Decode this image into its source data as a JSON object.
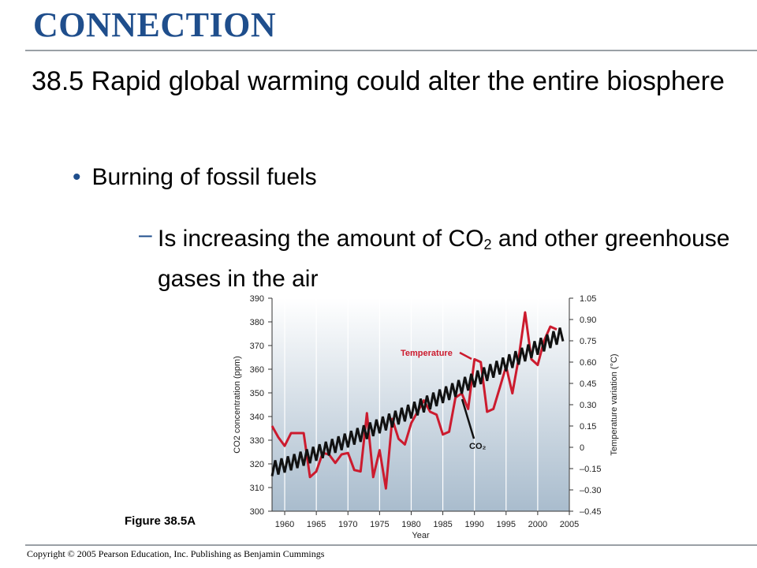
{
  "slide": {
    "header": "CONNECTION",
    "title": "38.5 Rapid global warming could alter the entire biosphere",
    "bullet": "Burning of fossil fuels",
    "dash": "–",
    "sub_pre": "Is increasing the amount of CO",
    "sub_sub": "2",
    "sub_post": " and other greenhouse gases in the air",
    "figure_label": "Figure 38.5A",
    "copyright": "Copyright © 2005 Pearson Education, Inc. Publishing as Benjamin Cummings"
  },
  "chart_data": {
    "type": "line",
    "xlabel": "Year",
    "ylabel_left": "CO2 concentration (ppm)",
    "ylabel_right": "Temperature variation (°C)",
    "xlim": [
      1958,
      2005
    ],
    "ylim_left": [
      300,
      390
    ],
    "ylim_right": [
      -0.45,
      1.05
    ],
    "x_ticks": [
      1960,
      1965,
      1970,
      1975,
      1980,
      1985,
      1990,
      1995,
      2000,
      2005
    ],
    "y_ticks_left": [
      300,
      310,
      320,
      330,
      340,
      350,
      360,
      370,
      380,
      390
    ],
    "y_ticks_right": [
      "1.05",
      "0.90",
      "0.75",
      "0.60",
      "0.45",
      "0.30",
      "0.15",
      "0",
      "–0.15",
      "–0.30",
      "–0.45"
    ],
    "series": [
      {
        "name": "Temperature",
        "axis": "right",
        "color": "#cc1b2e",
        "x": [
          1958,
          1959,
          1960,
          1961,
          1962,
          1963,
          1964,
          1965,
          1966,
          1967,
          1968,
          1969,
          1970,
          1971,
          1972,
          1973,
          1974,
          1975,
          1976,
          1977,
          1978,
          1979,
          1980,
          1981,
          1982,
          1983,
          1984,
          1985,
          1986,
          1987,
          1988,
          1989,
          1990,
          1991,
          1992,
          1993,
          1994,
          1995,
          1996,
          1997,
          1998,
          1999,
          2000,
          2001,
          2002,
          2003
        ],
        "y": [
          0.15,
          0.07,
          0.01,
          0.1,
          0.1,
          0.1,
          -0.21,
          -0.17,
          -0.04,
          -0.05,
          -0.11,
          -0.05,
          -0.04,
          -0.16,
          -0.17,
          0.24,
          -0.21,
          -0.02,
          -0.29,
          0.2,
          0.06,
          0.02,
          0.17,
          0.25,
          0.33,
          0.25,
          0.23,
          0.09,
          0.11,
          0.35,
          0.38,
          0.27,
          0.62,
          0.6,
          0.25,
          0.27,
          0.42,
          0.57,
          0.38,
          0.63,
          0.95,
          0.62,
          0.58,
          0.75,
          0.85,
          0.83
        ]
      },
      {
        "name": "CO2",
        "axis": "left",
        "color": "#111111",
        "x_start": 1958,
        "x_end": 2004,
        "y_start": 318,
        "y_end": 375,
        "seasonal_amplitude": 3.2
      }
    ],
    "annotations": [
      {
        "text": "Temperature",
        "color": "#cc1b2e"
      },
      {
        "text": "CO₂",
        "color": "#111111"
      }
    ]
  }
}
